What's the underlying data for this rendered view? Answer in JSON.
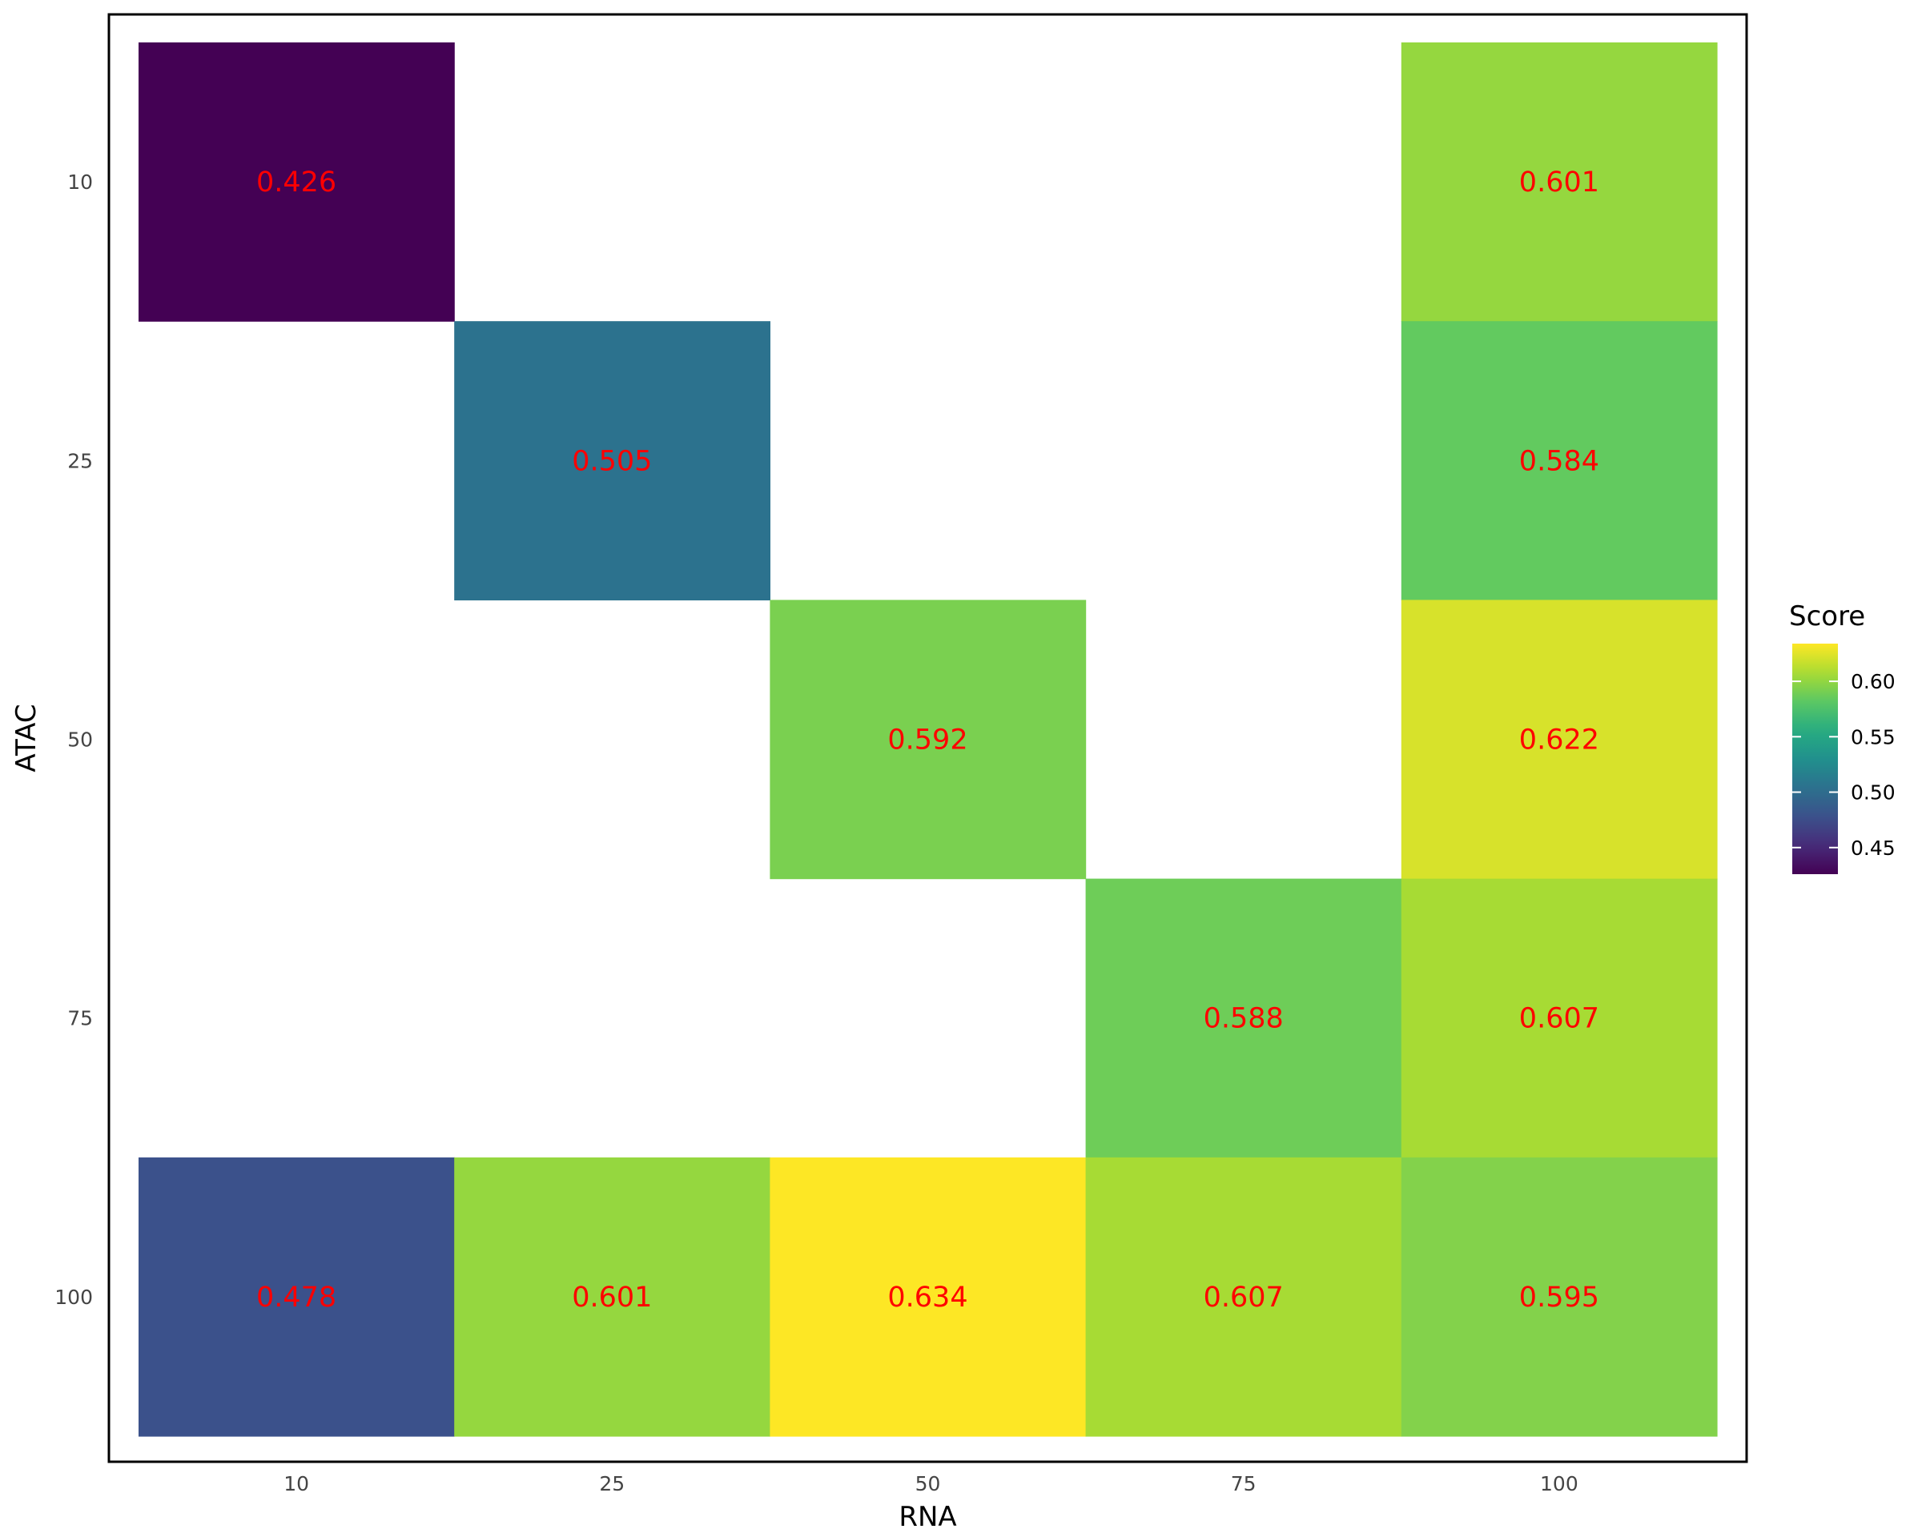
{
  "chart_data": {
    "type": "heatmap",
    "xlabel": "RNA",
    "ylabel": "ATAC",
    "x_categories": [
      "10",
      "25",
      "50",
      "75",
      "100"
    ],
    "y_categories": [
      "10",
      "25",
      "50",
      "75",
      "100"
    ],
    "cells": [
      {
        "x": "10",
        "y": "10",
        "value": 0.426,
        "label": "0.426"
      },
      {
        "x": "100",
        "y": "10",
        "value": 0.601,
        "label": "0.601"
      },
      {
        "x": "25",
        "y": "25",
        "value": 0.505,
        "label": "0.505"
      },
      {
        "x": "100",
        "y": "25",
        "value": 0.584,
        "label": "0.584"
      },
      {
        "x": "50",
        "y": "50",
        "value": 0.592,
        "label": "0.592"
      },
      {
        "x": "100",
        "y": "50",
        "value": 0.622,
        "label": "0.622"
      },
      {
        "x": "75",
        "y": "75",
        "value": 0.588,
        "label": "0.588"
      },
      {
        "x": "100",
        "y": "75",
        "value": 0.607,
        "label": "0.607"
      },
      {
        "x": "10",
        "y": "100",
        "value": 0.478,
        "label": "0.478"
      },
      {
        "x": "25",
        "y": "100",
        "value": 0.601,
        "label": "0.601"
      },
      {
        "x": "50",
        "y": "100",
        "value": 0.634,
        "label": "0.634"
      },
      {
        "x": "75",
        "y": "100",
        "value": 0.607,
        "label": "0.607"
      },
      {
        "x": "100",
        "y": "100",
        "value": 0.595,
        "label": "0.595"
      }
    ],
    "legend": {
      "title": "Score",
      "position": "right",
      "ticks": [
        {
          "value": 0.45,
          "label": "0.45"
        },
        {
          "value": 0.5,
          "label": "0.50"
        },
        {
          "value": 0.55,
          "label": "0.55"
        },
        {
          "value": 0.6,
          "label": "0.60"
        }
      ],
      "range": [
        0.426,
        0.634
      ]
    },
    "colorscale": "viridis",
    "label_color": "#ff0000",
    "grid": false
  }
}
